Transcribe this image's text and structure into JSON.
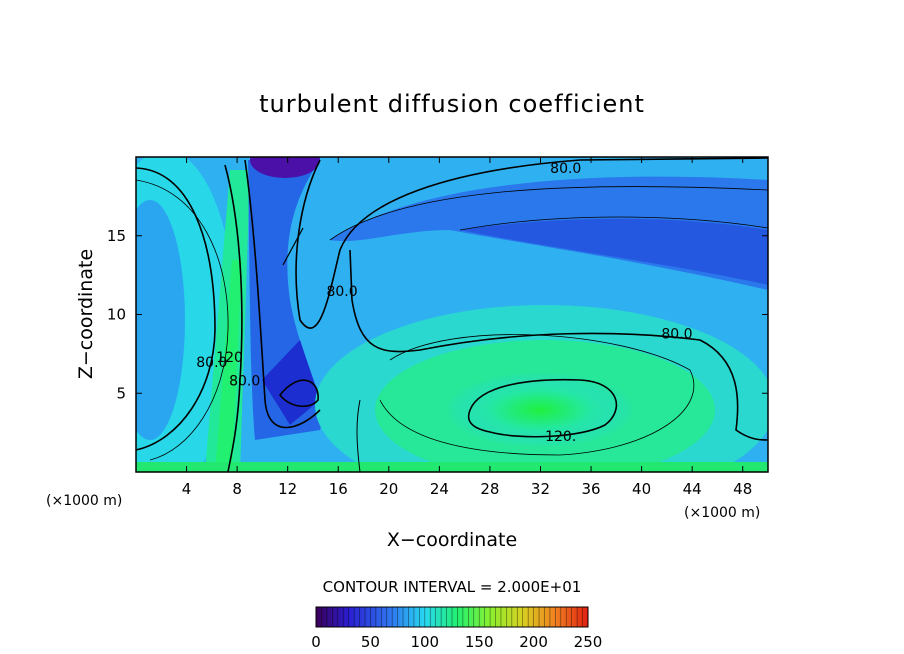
{
  "chart_data": {
    "type": "heatmap",
    "title": "turbulent diffusion coefficient",
    "xlabel": "X−coordinate",
    "ylabel": "Z−coordinate",
    "x_unit": "(×1000 m)",
    "y_unit": "(×1000 m)",
    "xlim": [
      0,
      50
    ],
    "ylim": [
      0,
      20
    ],
    "x_ticks": [
      4,
      8,
      12,
      16,
      20,
      24,
      28,
      32,
      36,
      40,
      44,
      48
    ],
    "y_ticks": [
      5,
      10,
      15
    ],
    "contour_interval_text": "CONTOUR INTERVAL = 2.000E+01",
    "contour_labels": [
      {
        "text": "80.0",
        "x": 34.0,
        "y": 19.3
      },
      {
        "text": "80.0",
        "x": 16.3,
        "y": 11.5
      },
      {
        "text": "80.0",
        "x": 42.8,
        "y": 8.8
      },
      {
        "text": "120.",
        "x": 33.6,
        "y": 2.3
      },
      {
        "text": "80.0",
        "x": 6.0,
        "y": 7.0
      },
      {
        "text": "120",
        "x": 7.4,
        "y": 7.3
      },
      {
        "text": "80.0",
        "x": 8.6,
        "y": 5.8
      }
    ],
    "colorbar": {
      "min": 0,
      "max": 250,
      "ticks": [
        "0",
        "50",
        "100",
        "150",
        "200",
        "250"
      ],
      "colors": [
        "#3a0058",
        "#2a1ed0",
        "#2f7af0",
        "#27d8f0",
        "#22f070",
        "#8af030",
        "#d8d020",
        "#f08020",
        "#e02010"
      ]
    }
  }
}
